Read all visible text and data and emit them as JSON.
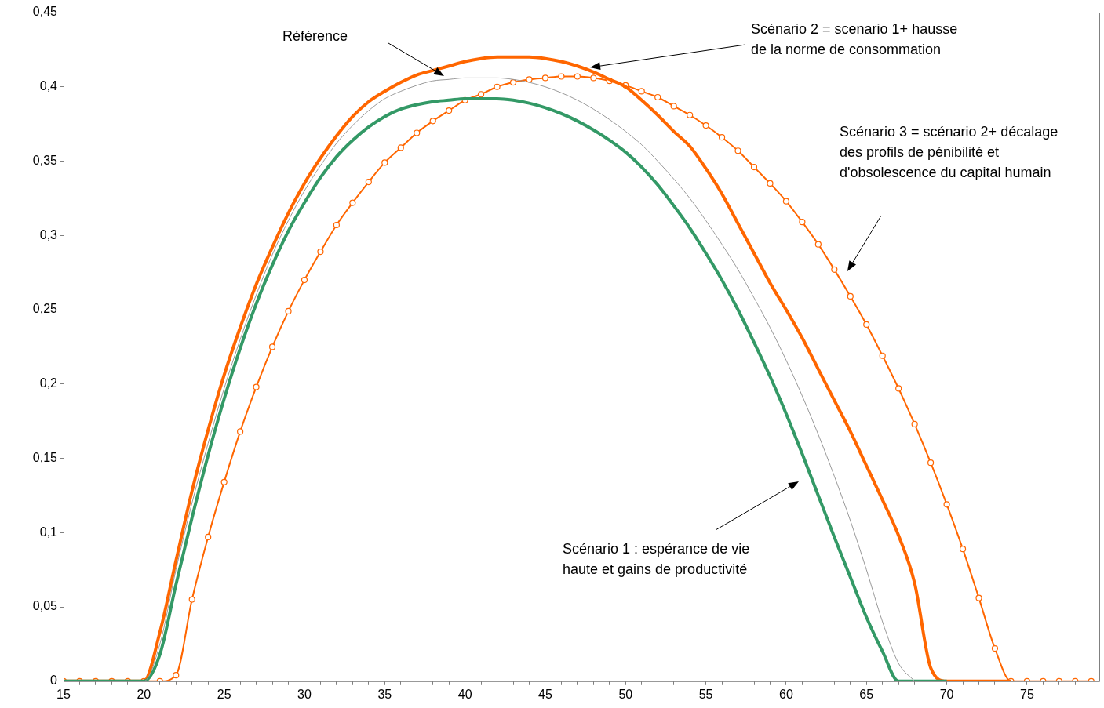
{
  "chart_data": {
    "type": "line",
    "x": [
      15,
      16,
      17,
      18,
      19,
      20,
      21,
      22,
      23,
      24,
      25,
      26,
      27,
      28,
      29,
      30,
      31,
      32,
      33,
      34,
      35,
      36,
      37,
      38,
      39,
      40,
      41,
      42,
      43,
      44,
      45,
      46,
      47,
      48,
      49,
      50,
      51,
      52,
      53,
      54,
      55,
      56,
      57,
      58,
      59,
      60,
      61,
      62,
      63,
      64,
      65,
      66,
      67,
      68,
      69,
      70,
      71,
      72,
      73,
      74,
      75,
      76,
      77,
      78,
      79
    ],
    "series": [
      {
        "color": "#999999",
        "marker": "none",
        "values": [
          0,
          0,
          0,
          0,
          0,
          0,
          0.025,
          0.075,
          0.12,
          0.16,
          0.197,
          0.23,
          0.26,
          0.287,
          0.31,
          0.33,
          0.347,
          0.362,
          0.374,
          0.384,
          0.392,
          0.397,
          0.401,
          0.404,
          0.405,
          0.406,
          0.406,
          0.406,
          0.405,
          0.403,
          0.4,
          0.396,
          0.391,
          0.385,
          0.378,
          0.37,
          0.361,
          0.35,
          0.338,
          0.325,
          0.31,
          0.294,
          0.277,
          0.258,
          0.238,
          0.216,
          0.192,
          0.166,
          0.138,
          0.108,
          0.075,
          0.04,
          0.012,
          0,
          null,
          null,
          null,
          null,
          null,
          null,
          null,
          null,
          null,
          null,
          null
        ]
      },
      {
        "color": "#339966",
        "marker": "none",
        "values": [
          0,
          0,
          0,
          0,
          0,
          0,
          0.018,
          0.065,
          0.11,
          0.152,
          0.19,
          0.224,
          0.254,
          0.28,
          0.303,
          0.322,
          0.339,
          0.353,
          0.364,
          0.373,
          0.38,
          0.385,
          0.388,
          0.39,
          0.391,
          0.392,
          0.392,
          0.392,
          0.391,
          0.389,
          0.386,
          0.382,
          0.377,
          0.371,
          0.364,
          0.356,
          0.346,
          0.334,
          0.32,
          0.305,
          0.288,
          0.27,
          0.25,
          0.228,
          0.205,
          0.18,
          0.153,
          0.125,
          0.097,
          0.07,
          0.043,
          0.02,
          0,
          0,
          0,
          0,
          null,
          null,
          null,
          null,
          null,
          null,
          null,
          null,
          null
        ]
      },
      {
        "color": "#ff6600",
        "marker": "none",
        "values": [
          0,
          0,
          0,
          0,
          0,
          0,
          0.033,
          0.081,
          0.128,
          0.169,
          0.206,
          0.238,
          0.267,
          0.292,
          0.315,
          0.335,
          0.352,
          0.367,
          0.38,
          0.39,
          0.397,
          0.403,
          0.408,
          0.411,
          0.414,
          0.417,
          0.419,
          0.42,
          0.42,
          0.42,
          0.419,
          0.417,
          0.414,
          0.41,
          0.405,
          0.4,
          0.391,
          0.381,
          0.37,
          0.36,
          0.345,
          0.328,
          0.308,
          0.288,
          0.268,
          0.25,
          0.231,
          0.21,
          0.189,
          0.168,
          0.145,
          0.122,
          0.098,
          0.066,
          0.009,
          0,
          0,
          0,
          0,
          0,
          null,
          null,
          null,
          null,
          null
        ]
      },
      {
        "color": "#ff6600",
        "marker": "circle",
        "values": [
          0,
          0,
          0,
          0,
          0,
          0,
          0,
          0.004,
          0.055,
          0.097,
          0.134,
          0.168,
          0.198,
          0.225,
          0.249,
          0.27,
          0.289,
          0.307,
          0.322,
          0.336,
          0.349,
          0.359,
          0.369,
          0.377,
          0.384,
          0.391,
          0.395,
          0.4,
          0.403,
          0.405,
          0.406,
          0.407,
          0.407,
          0.406,
          0.404,
          0.401,
          0.397,
          0.393,
          0.387,
          0.381,
          0.374,
          0.366,
          0.357,
          0.346,
          0.335,
          0.323,
          0.309,
          0.294,
          0.277,
          0.259,
          0.24,
          0.219,
          0.197,
          0.173,
          0.147,
          0.119,
          0.089,
          0.056,
          0.022,
          0,
          0,
          0,
          0,
          0,
          0
        ]
      }
    ],
    "xlim": [
      15,
      79.5
    ],
    "xticks": [
      15,
      {
        "value": 16,
        "label": null
      },
      {
        "value": 17,
        "label": null
      },
      {
        "value": 18,
        "label": null
      },
      {
        "value": 19,
        "label": null
      },
      20,
      {
        "value": 21,
        "label": null
      },
      {
        "value": 22,
        "label": null
      },
      {
        "value": 23,
        "label": null
      },
      {
        "value": 24,
        "label": null
      },
      25,
      {
        "value": 26,
        "label": null
      },
      {
        "value": 27,
        "label": null
      },
      {
        "value": 28,
        "label": null
      },
      {
        "value": 29,
        "label": null
      },
      30,
      {
        "value": 31,
        "label": null
      },
      {
        "value": 32,
        "label": null
      },
      {
        "value": 33,
        "label": null
      },
      {
        "value": 34,
        "label": null
      },
      35,
      {
        "value": 36,
        "label": null
      },
      {
        "value": 37,
        "label": null
      },
      {
        "value": 38,
        "label": null
      },
      {
        "value": 39,
        "label": null
      },
      40,
      {
        "value": 41,
        "label": null
      },
      {
        "value": 42,
        "label": null
      },
      {
        "value": 43,
        "label": null
      },
      {
        "value": 44,
        "label": null
      },
      45,
      {
        "value": 46,
        "label": null
      },
      {
        "value": 47,
        "label": null
      },
      {
        "value": 48,
        "label": null
      },
      {
        "value": 49,
        "label": null
      },
      50,
      {
        "value": 51,
        "label": null
      },
      {
        "value": 52,
        "label": null
      },
      {
        "value": 53,
        "label": null
      },
      {
        "value": 54,
        "label": null
      },
      55,
      {
        "value": 56,
        "label": null
      },
      {
        "value": 57,
        "label": null
      },
      {
        "value": 58,
        "label": null
      },
      {
        "value": 59,
        "label": null
      },
      60,
      {
        "value": 61,
        "label": null
      },
      {
        "value": 62,
        "label": null
      },
      {
        "value": 63,
        "label": null
      },
      {
        "value": 64,
        "label": null
      },
      65,
      {
        "value": 66,
        "label": null
      },
      {
        "value": 67,
        "label": null
      },
      {
        "value": 68,
        "label": null
      },
      {
        "value": 69,
        "label": null
      },
      70,
      {
        "value": 71,
        "label": null
      },
      {
        "value": 72,
        "label": null
      },
      {
        "value": 73,
        "label": null
      },
      {
        "value": 74,
        "label": null
      },
      75,
      {
        "value": 76,
        "label": null
      },
      {
        "value": 77,
        "label": null
      },
      {
        "value": 78,
        "label": null
      },
      {
        "value": 79,
        "label": null
      }
    ],
    "ylim": [
      0,
      0.45
    ],
    "yticks": [
      0,
      {
        "value": 0.05,
        "label": "0,05"
      },
      {
        "value": 0.1,
        "label": "0,1"
      },
      {
        "value": 0.15,
        "label": "0,15"
      },
      {
        "value": 0.2,
        "label": "0,2"
      },
      {
        "value": 0.25,
        "label": "0,25"
      },
      {
        "value": 0.3,
        "label": "0,3"
      },
      {
        "value": 0.35,
        "label": "0,35"
      },
      {
        "value": 0.4,
        "label": "0,4"
      },
      {
        "value": 0.45,
        "label": "0,45"
      }
    ],
    "grid": false,
    "legend": false,
    "annotations": [
      "Référence",
      "Scénario 2 = scenario 1+ hausse de la norme de consommation",
      "Scénario 3 = scénario 2+ décalage des profils de pénibilité et d'obsolescence du capital humain",
      "Scénario 1 : espérance de vie haute et gains de productivité"
    ]
  }
}
